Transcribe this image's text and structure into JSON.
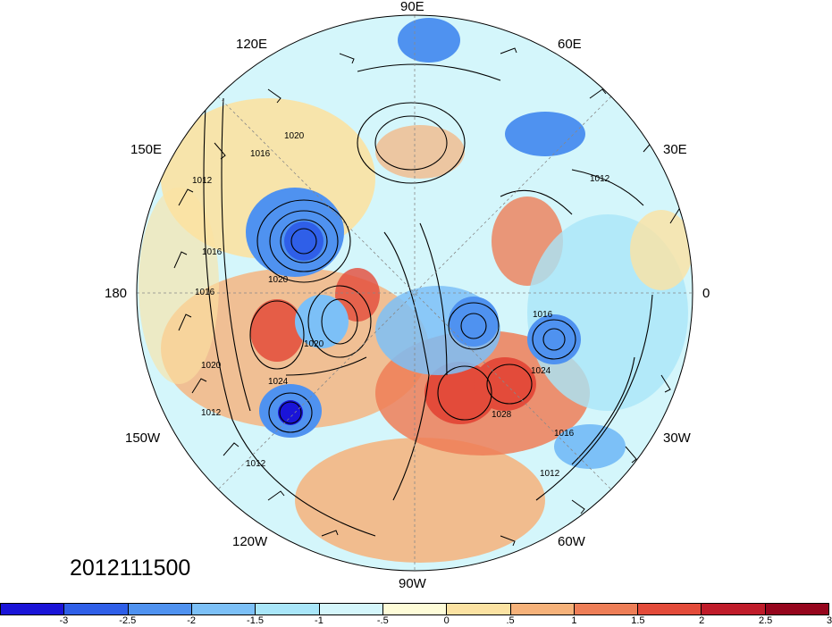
{
  "map": {
    "longitude_labels": [
      {
        "id": "90E",
        "text": "90E"
      },
      {
        "id": "60E",
        "text": "60E"
      },
      {
        "id": "120E",
        "text": "120E"
      },
      {
        "id": "30E",
        "text": "30E"
      },
      {
        "id": "150E",
        "text": "150E"
      },
      {
        "id": "180",
        "text": "180"
      },
      {
        "id": "0",
        "text": "0"
      },
      {
        "id": "150W",
        "text": "150W"
      },
      {
        "id": "30W",
        "text": "30W"
      },
      {
        "id": "120W",
        "text": "120W"
      },
      {
        "id": "60W",
        "text": "60W"
      },
      {
        "id": "90W",
        "text": "90W"
      }
    ],
    "contour_labels": [
      "1012",
      "1016",
      "1020",
      "1024",
      "1028"
    ],
    "date_stamp": "2012111500"
  },
  "colorbar": {
    "colors": [
      "#1a14d8",
      "#2f5fe8",
      "#4f92f0",
      "#7cc0f7",
      "#a9e6f9",
      "#d4f6fb",
      "#fefcd8",
      "#fbe2a2",
      "#f6b27a",
      "#ee7e57",
      "#e34b3a",
      "#c01c2a",
      "#96061d"
    ],
    "ticks": [
      "-3",
      "-2.5",
      "-2",
      "-1.5",
      "-1",
      "-.5",
      "0",
      ".5",
      "1",
      "1.5",
      "2",
      "2.5",
      "3"
    ]
  }
}
